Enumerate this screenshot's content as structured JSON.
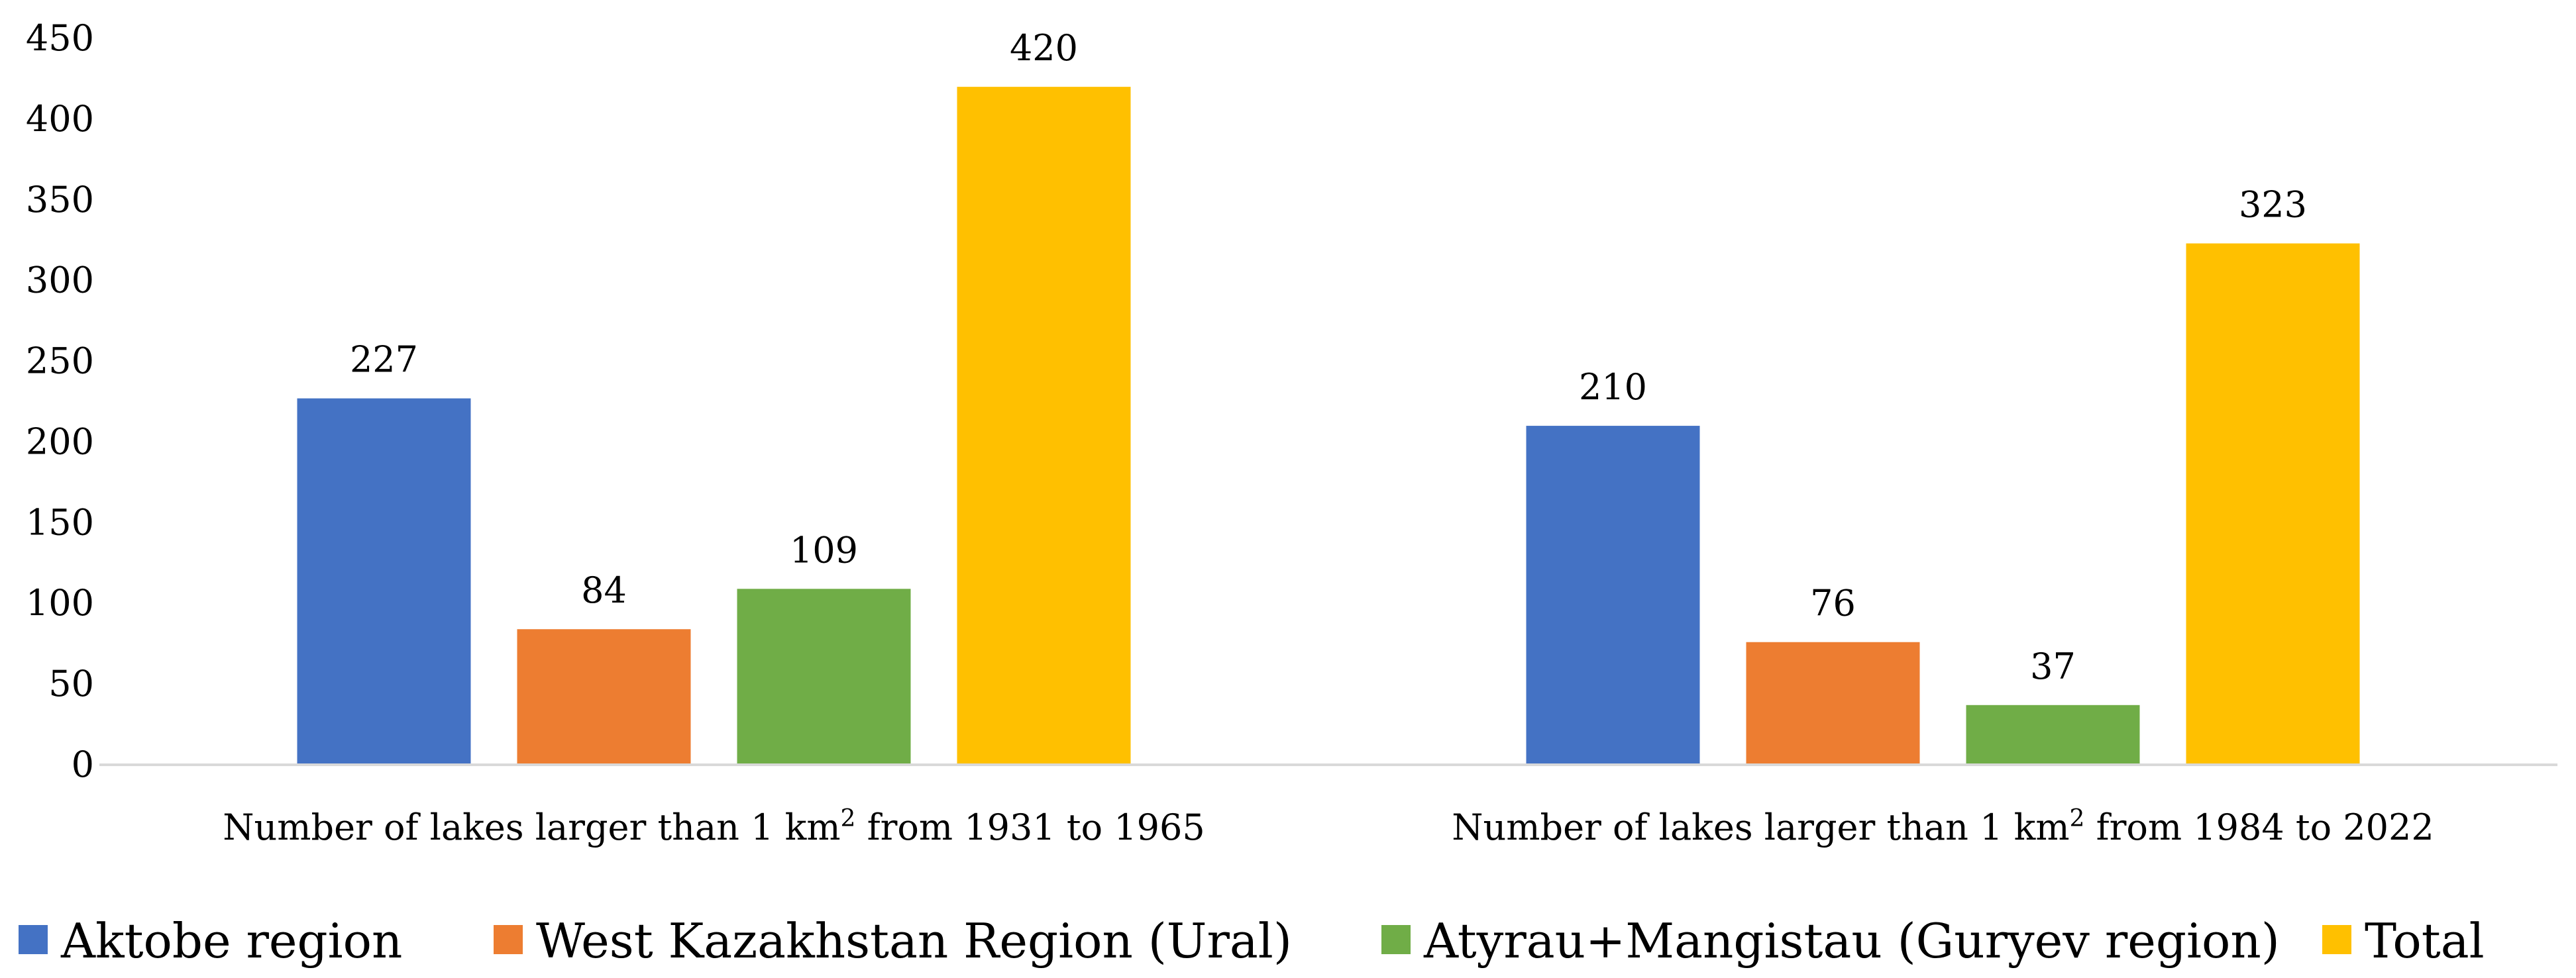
{
  "chart_data": {
    "type": "bar",
    "title": "",
    "xlabel": "",
    "ylabel": "",
    "ylim": [
      0,
      450
    ],
    "yticks": [
      0,
      50,
      100,
      150,
      200,
      250,
      300,
      350,
      400,
      450
    ],
    "grid": false,
    "legend_position": "bottom",
    "categories": [
      {
        "prefix": "Number of lakes larger than 1  km",
        "sup": "2",
        "suffix": " from 1931 to 1965"
      },
      {
        "prefix": "Number of lakes larger than 1  km",
        "sup": "2",
        "suffix": " from 1984 to 2022"
      }
    ],
    "series": [
      {
        "name": "Aktobe region",
        "color": "#4472c4",
        "values": [
          227,
          210
        ]
      },
      {
        "name": "West Kazakhstan Region (Ural)",
        "color": "#ed7d31",
        "values": [
          84,
          76
        ]
      },
      {
        "name": "Atyrau+Mangistau (Guryev region)",
        "color": "#70ad47",
        "values": [
          109,
          37
        ]
      },
      {
        "name": "Total",
        "color": "#ffc000",
        "values": [
          420,
          323
        ]
      }
    ]
  }
}
